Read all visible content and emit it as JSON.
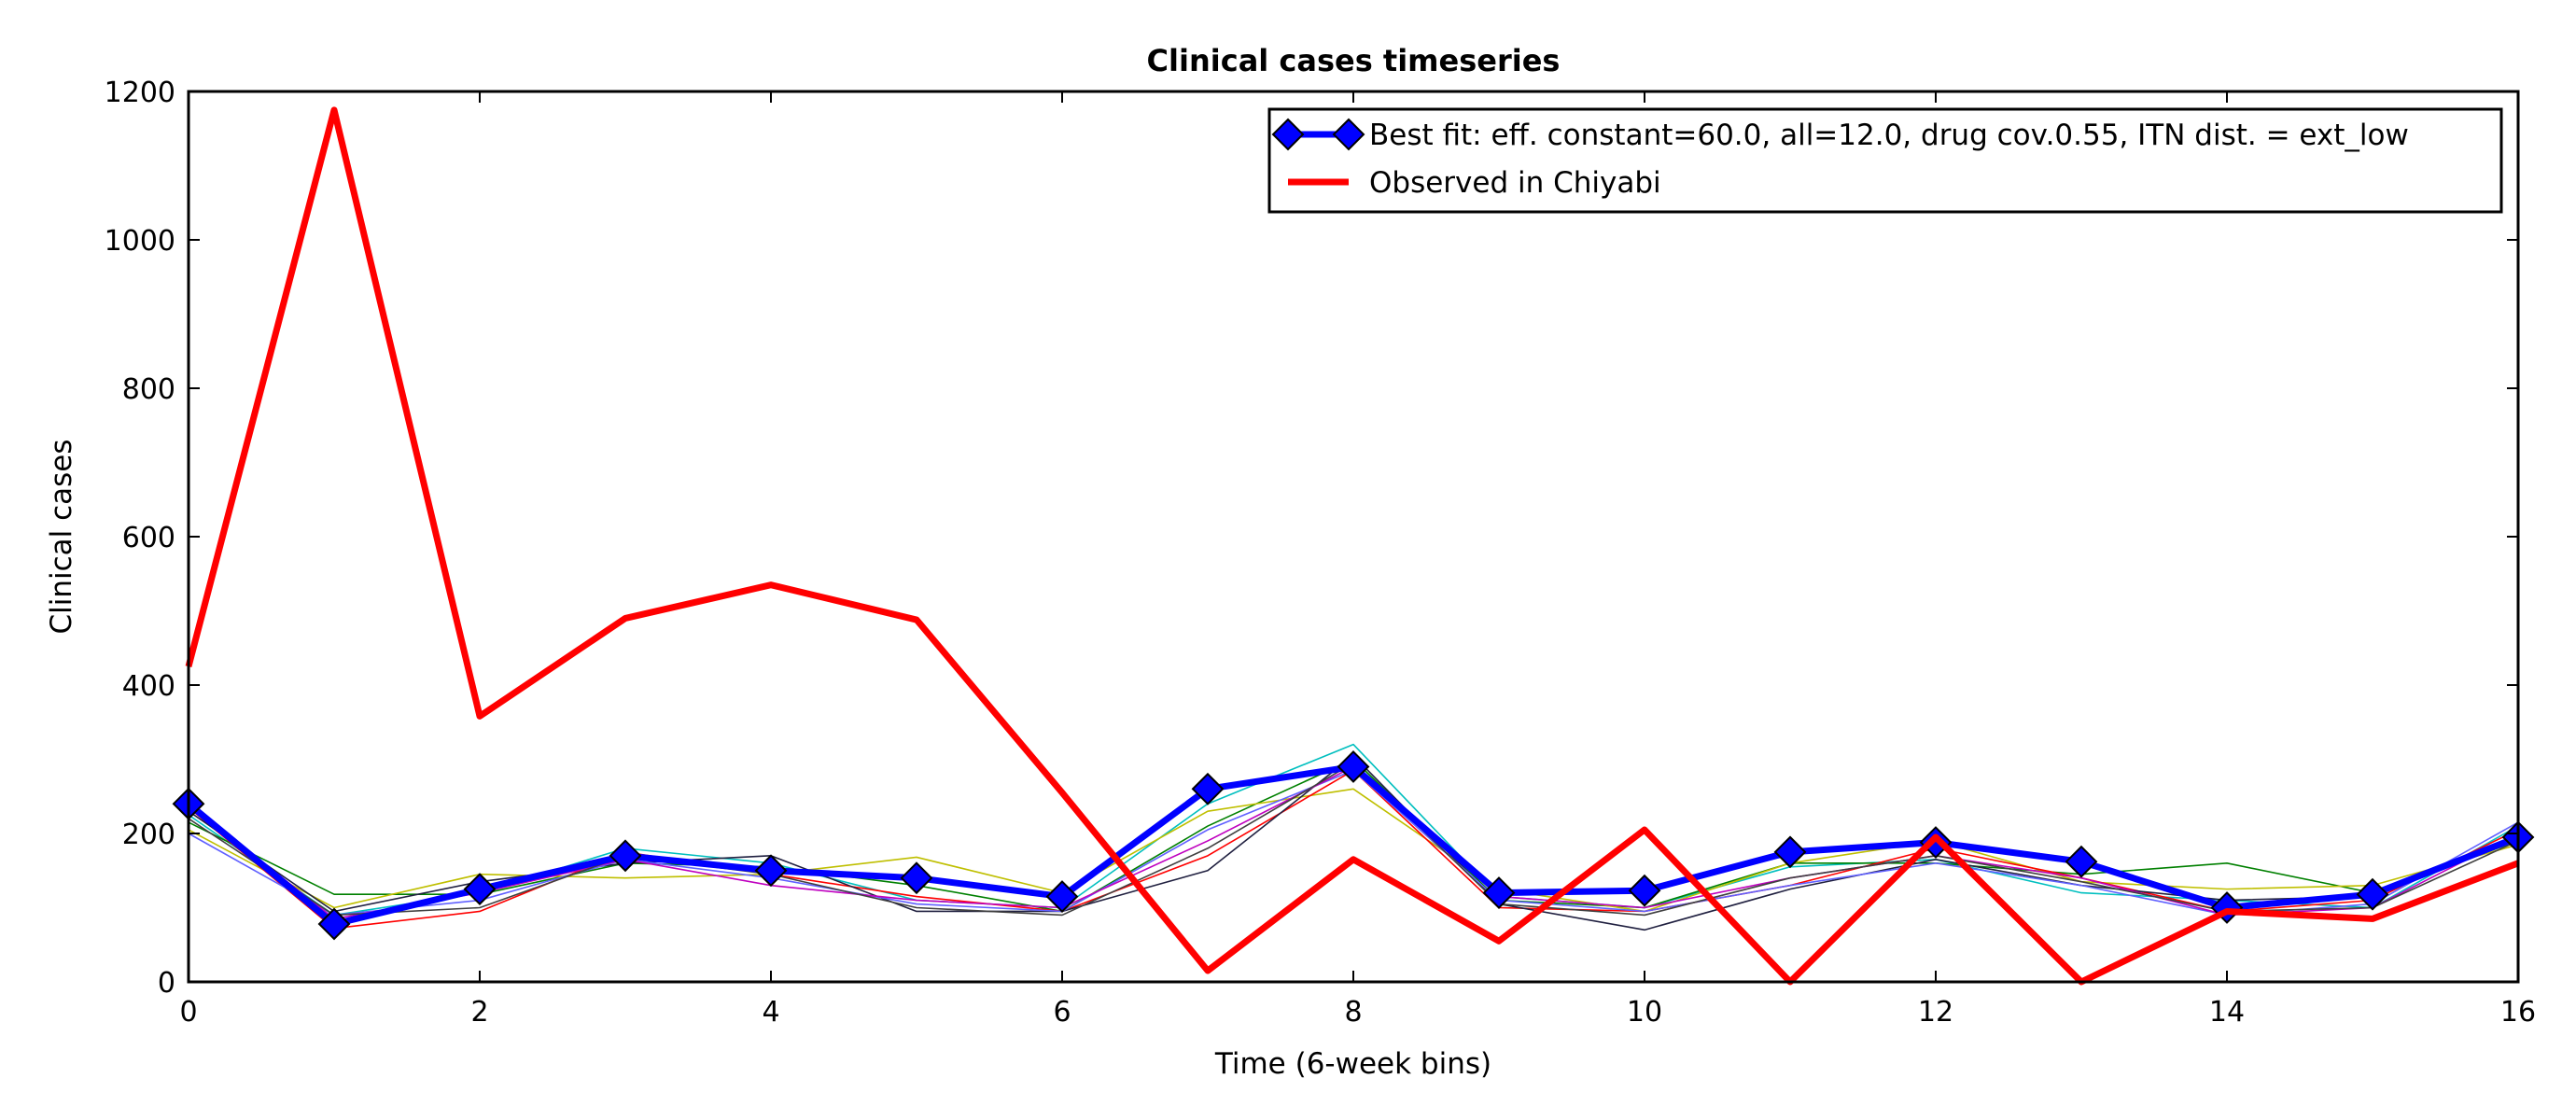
{
  "chart_data": {
    "type": "line",
    "title": "Clinical cases timeseries",
    "xlabel": "Time (6-week bins)",
    "ylabel": "Clinical cases",
    "xlim": [
      0,
      16
    ],
    "ylim": [
      0,
      1200
    ],
    "xticks": [
      0,
      2,
      4,
      6,
      8,
      10,
      12,
      14,
      16
    ],
    "yticks": [
      0,
      200,
      400,
      600,
      800,
      1000,
      1200
    ],
    "grid": false,
    "legend_position": "top-right",
    "x": [
      0,
      1,
      2,
      3,
      4,
      5,
      6,
      7,
      8,
      9,
      10,
      11,
      12,
      13,
      14,
      15,
      16
    ],
    "series": [
      {
        "name": "Best fit: eff. constant=60.0, all=12.0, drug cov.0.55, ITN dist. = ext_low",
        "color": "#0000ff",
        "marker": "diamond",
        "width": 7,
        "values": [
          240,
          78,
          125,
          170,
          150,
          140,
          115,
          260,
          290,
          120,
          123,
          175,
          188,
          162,
          100,
          118,
          195
        ]
      },
      {
        "name": "Observed in Chiyabi",
        "color": "#ff0000",
        "width": 7,
        "values": [
          425,
          1175,
          358,
          490,
          535,
          488,
          255,
          15,
          165,
          55,
          205,
          0,
          195,
          0,
          95,
          85,
          160
        ]
      }
    ],
    "background_series": [
      {
        "color": "#00bfbf",
        "values": [
          225,
          90,
          120,
          180,
          160,
          110,
          100,
          240,
          320,
          115,
          100,
          155,
          165,
          120,
          110,
          100,
          210
        ]
      },
      {
        "color": "#008000",
        "values": [
          215,
          118,
          118,
          160,
          155,
          130,
          95,
          210,
          300,
          110,
          100,
          160,
          160,
          145,
          160,
          120,
          190
        ]
      },
      {
        "color": "#bfbf00",
        "values": [
          205,
          100,
          145,
          140,
          145,
          168,
          120,
          230,
          260,
          125,
          95,
          160,
          190,
          135,
          125,
          130,
          185
        ]
      },
      {
        "color": "#ff0000",
        "values": [
          235,
          72,
          95,
          175,
          145,
          115,
          95,
          170,
          285,
          100,
          95,
          130,
          180,
          140,
          95,
          110,
          205
        ]
      },
      {
        "color": "#202040",
        "values": [
          230,
          95,
          135,
          160,
          170,
          95,
          95,
          150,
          305,
          105,
          70,
          125,
          165,
          130,
          110,
          115,
          195
        ]
      },
      {
        "color": "#6060ff",
        "values": [
          200,
          90,
          110,
          165,
          140,
          105,
          95,
          205,
          285,
          110,
          95,
          130,
          160,
          130,
          90,
          105,
          215
        ]
      },
      {
        "color": "#bf00bf",
        "values": [
          240,
          85,
          120,
          165,
          130,
          110,
          100,
          190,
          290,
          115,
          100,
          140,
          170,
          140,
          90,
          100,
          200
        ]
      },
      {
        "color": "#404040",
        "values": [
          220,
          90,
          100,
          170,
          145,
          100,
          90,
          180,
          295,
          105,
          90,
          140,
          170,
          135,
          95,
          100,
          190
        ]
      }
    ]
  }
}
